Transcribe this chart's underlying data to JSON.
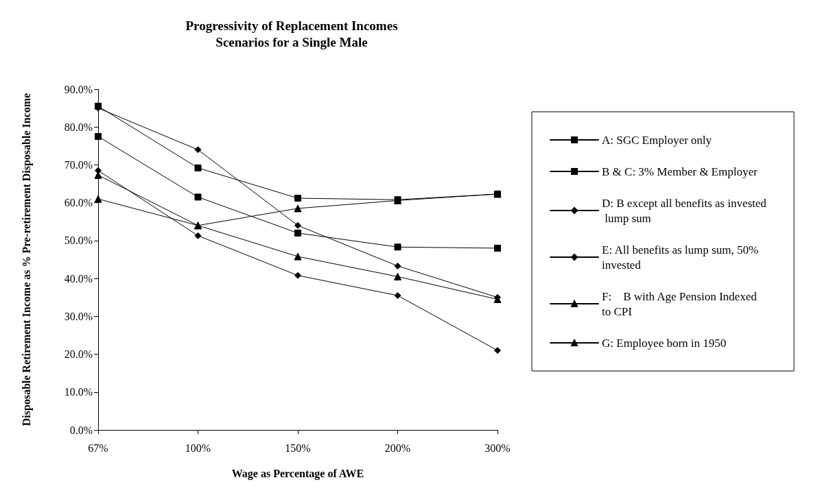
{
  "chart_data": {
    "type": "line",
    "title": "Progressivity of Replacement Incomes\nScenarios for a Single Male",
    "xlabel": "Wage as Percentage of AWE",
    "ylabel": "Disposable Retirement Income as % Pre-retirement Disposable Income",
    "categories": [
      "67%",
      "100%",
      "150%",
      "200%",
      "300%"
    ],
    "series": [
      {
        "name": "A: SGC Employer only",
        "color": "#000000",
        "marker": "square",
        "values": [
          77.5,
          61.5,
          52,
          48.3,
          48
        ]
      },
      {
        "name": "B & C: 3% Member & Employer",
        "color": "#000000",
        "marker": "square",
        "values": [
          85.5,
          69.2,
          61.2,
          60.8,
          62.3
        ]
      },
      {
        "name": "D: B except all benefits as invested lump sum",
        "color": "#000000",
        "marker": "diamond",
        "values": [
          85,
          74,
          54,
          43.3,
          35
        ]
      },
      {
        "name": "E: All benefits as lump sum, 50% invested",
        "color": "#000000",
        "marker": "diamond",
        "values": [
          68.5,
          51.3,
          40.8,
          35.5,
          21
        ]
      },
      {
        "name": "F:    B with Age Pension Indexed to CPI",
        "color": "#000000",
        "marker": "triangle",
        "values": [
          61,
          54,
          58.5,
          60.6,
          62.3
        ]
      },
      {
        "name": "G: Employee born in 1950",
        "color": "#000000",
        "marker": "triangle",
        "values": [
          67.3,
          54,
          45.8,
          40.5,
          34.5
        ]
      }
    ],
    "ylim": [
      0,
      90
    ],
    "yticks": [
      {
        "value": 0,
        "label": "0.0%"
      },
      {
        "value": 10,
        "label": "10.0%"
      },
      {
        "value": 20,
        "label": "20.0%"
      },
      {
        "value": 30,
        "label": "30.0%"
      },
      {
        "value": 40,
        "label": "40.0%"
      },
      {
        "value": 50,
        "label": "50.0%"
      },
      {
        "value": 60,
        "label": "60.0%"
      },
      {
        "value": 70,
        "label": "70.0%"
      },
      {
        "value": 80,
        "label": "80.0%"
      },
      {
        "value": 90,
        "label": "90.0%"
      }
    ],
    "grid": false,
    "legend": "right",
    "line_style": "solid"
  }
}
